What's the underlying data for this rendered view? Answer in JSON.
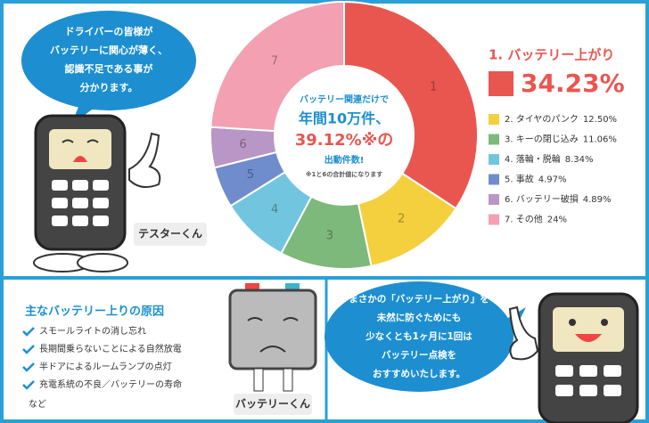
{
  "chart_data": {
    "type": "donut",
    "categories": [
      "1. バッテリー上がり",
      "2. タイヤのパンク",
      "3. キーの閉じ込み",
      "4. 落輪・脱輪",
      "5. 事故",
      "6. バッテリー破損",
      "7. その他"
    ],
    "segment_labels": [
      "1",
      "2",
      "3",
      "4",
      "5",
      "6",
      "7"
    ],
    "values": [
      34.23,
      12.5,
      11.06,
      8.34,
      4.97,
      4.89,
      24
    ],
    "value_labels": [
      "34.23%",
      "12.50%",
      "11.06%",
      "8.34%",
      "4.97%",
      "4.89%",
      "24%"
    ],
    "colors": [
      "#e9564f",
      "#f4d03f",
      "#7db97b",
      "#72c5df",
      "#6f8dcc",
      "#b896c6",
      "#f2a0b2"
    ],
    "center_text": [
      "バッテリー関連だけで",
      "年間10万件、",
      "39.12%※の",
      "出動件数!",
      "※1と6の合計値になります"
    ]
  },
  "bubble_top": [
    "ドライバーの皆様が",
    "バッテリーに関心が薄く、",
    "認識不足である事が",
    "分かります。"
  ],
  "tester_name": "テスターくん",
  "causes": {
    "title": "主なバッテリー上りの原因",
    "items": [
      "スモールライトの消し忘れ",
      "長期間乗らないことによる自然放電",
      "半ドアによるルームランプの点灯",
      "充電系統の不良／バッテリーの寿命"
    ],
    "note": "など"
  },
  "battery_name": "バッテリーくん",
  "bubble_bottom": [
    "まさかの「バッテリー上がり」を",
    "未然に防ぐためにも",
    "少なくとも1ヶ月に1回は",
    "バッテリー点検を",
    "おすすめいたします。"
  ]
}
